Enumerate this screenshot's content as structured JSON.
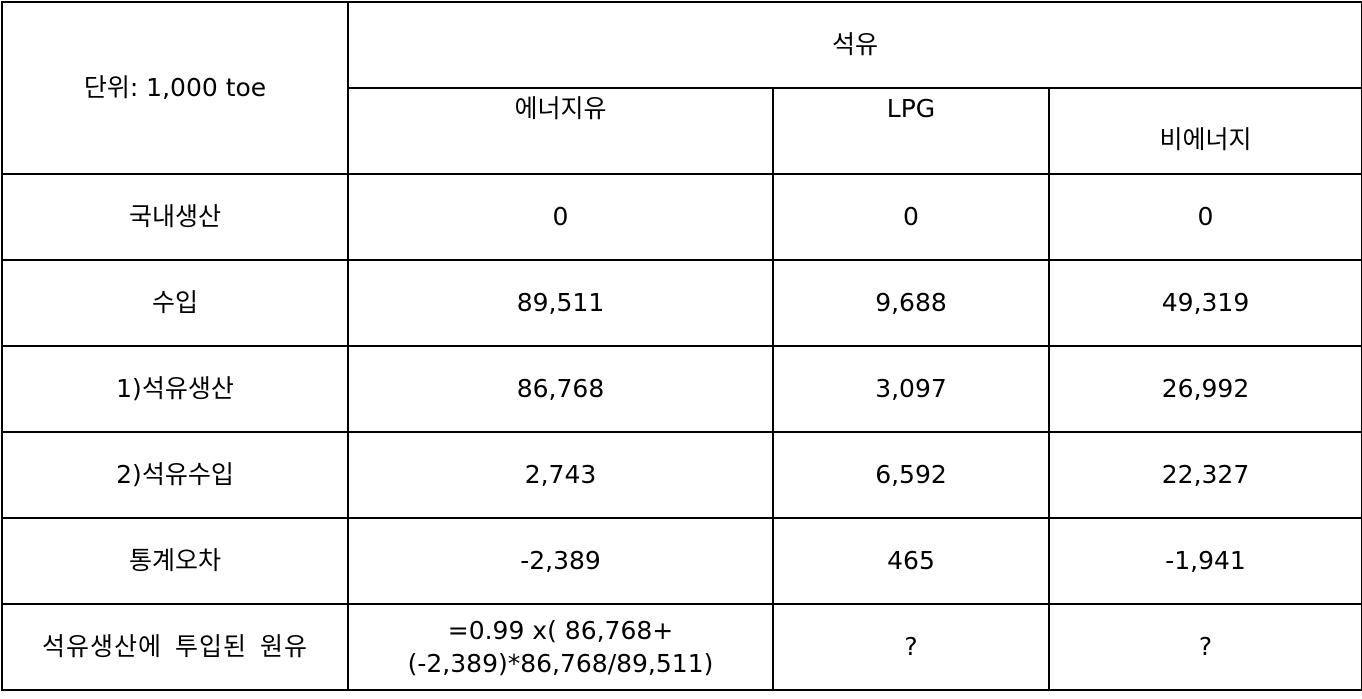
{
  "table": {
    "unit_label": "단위: 1,000 toe",
    "group_header": "석유",
    "columns": [
      "에너지유",
      "LPG",
      "비에너지"
    ],
    "rows": [
      {
        "label": "국내생산",
        "values": [
          "0",
          "0",
          "0"
        ]
      },
      {
        "label": "수입",
        "values": [
          "89,511",
          "9,688",
          "49,319"
        ]
      },
      {
        "label": "1)석유생산",
        "values": [
          "86,768",
          "3,097",
          "26,992"
        ]
      },
      {
        "label": "2)석유수입",
        "values": [
          "2,743",
          "6,592",
          "22,327"
        ]
      },
      {
        "label": "통계오차",
        "values": [
          "-2,389",
          "465",
          "-1,941"
        ]
      },
      {
        "label": "석유생산에 투입된 원유",
        "values": [
          "=0.99 x( 86,768+(-2,389)*86,768/89,511)",
          "?",
          "?"
        ]
      }
    ]
  }
}
